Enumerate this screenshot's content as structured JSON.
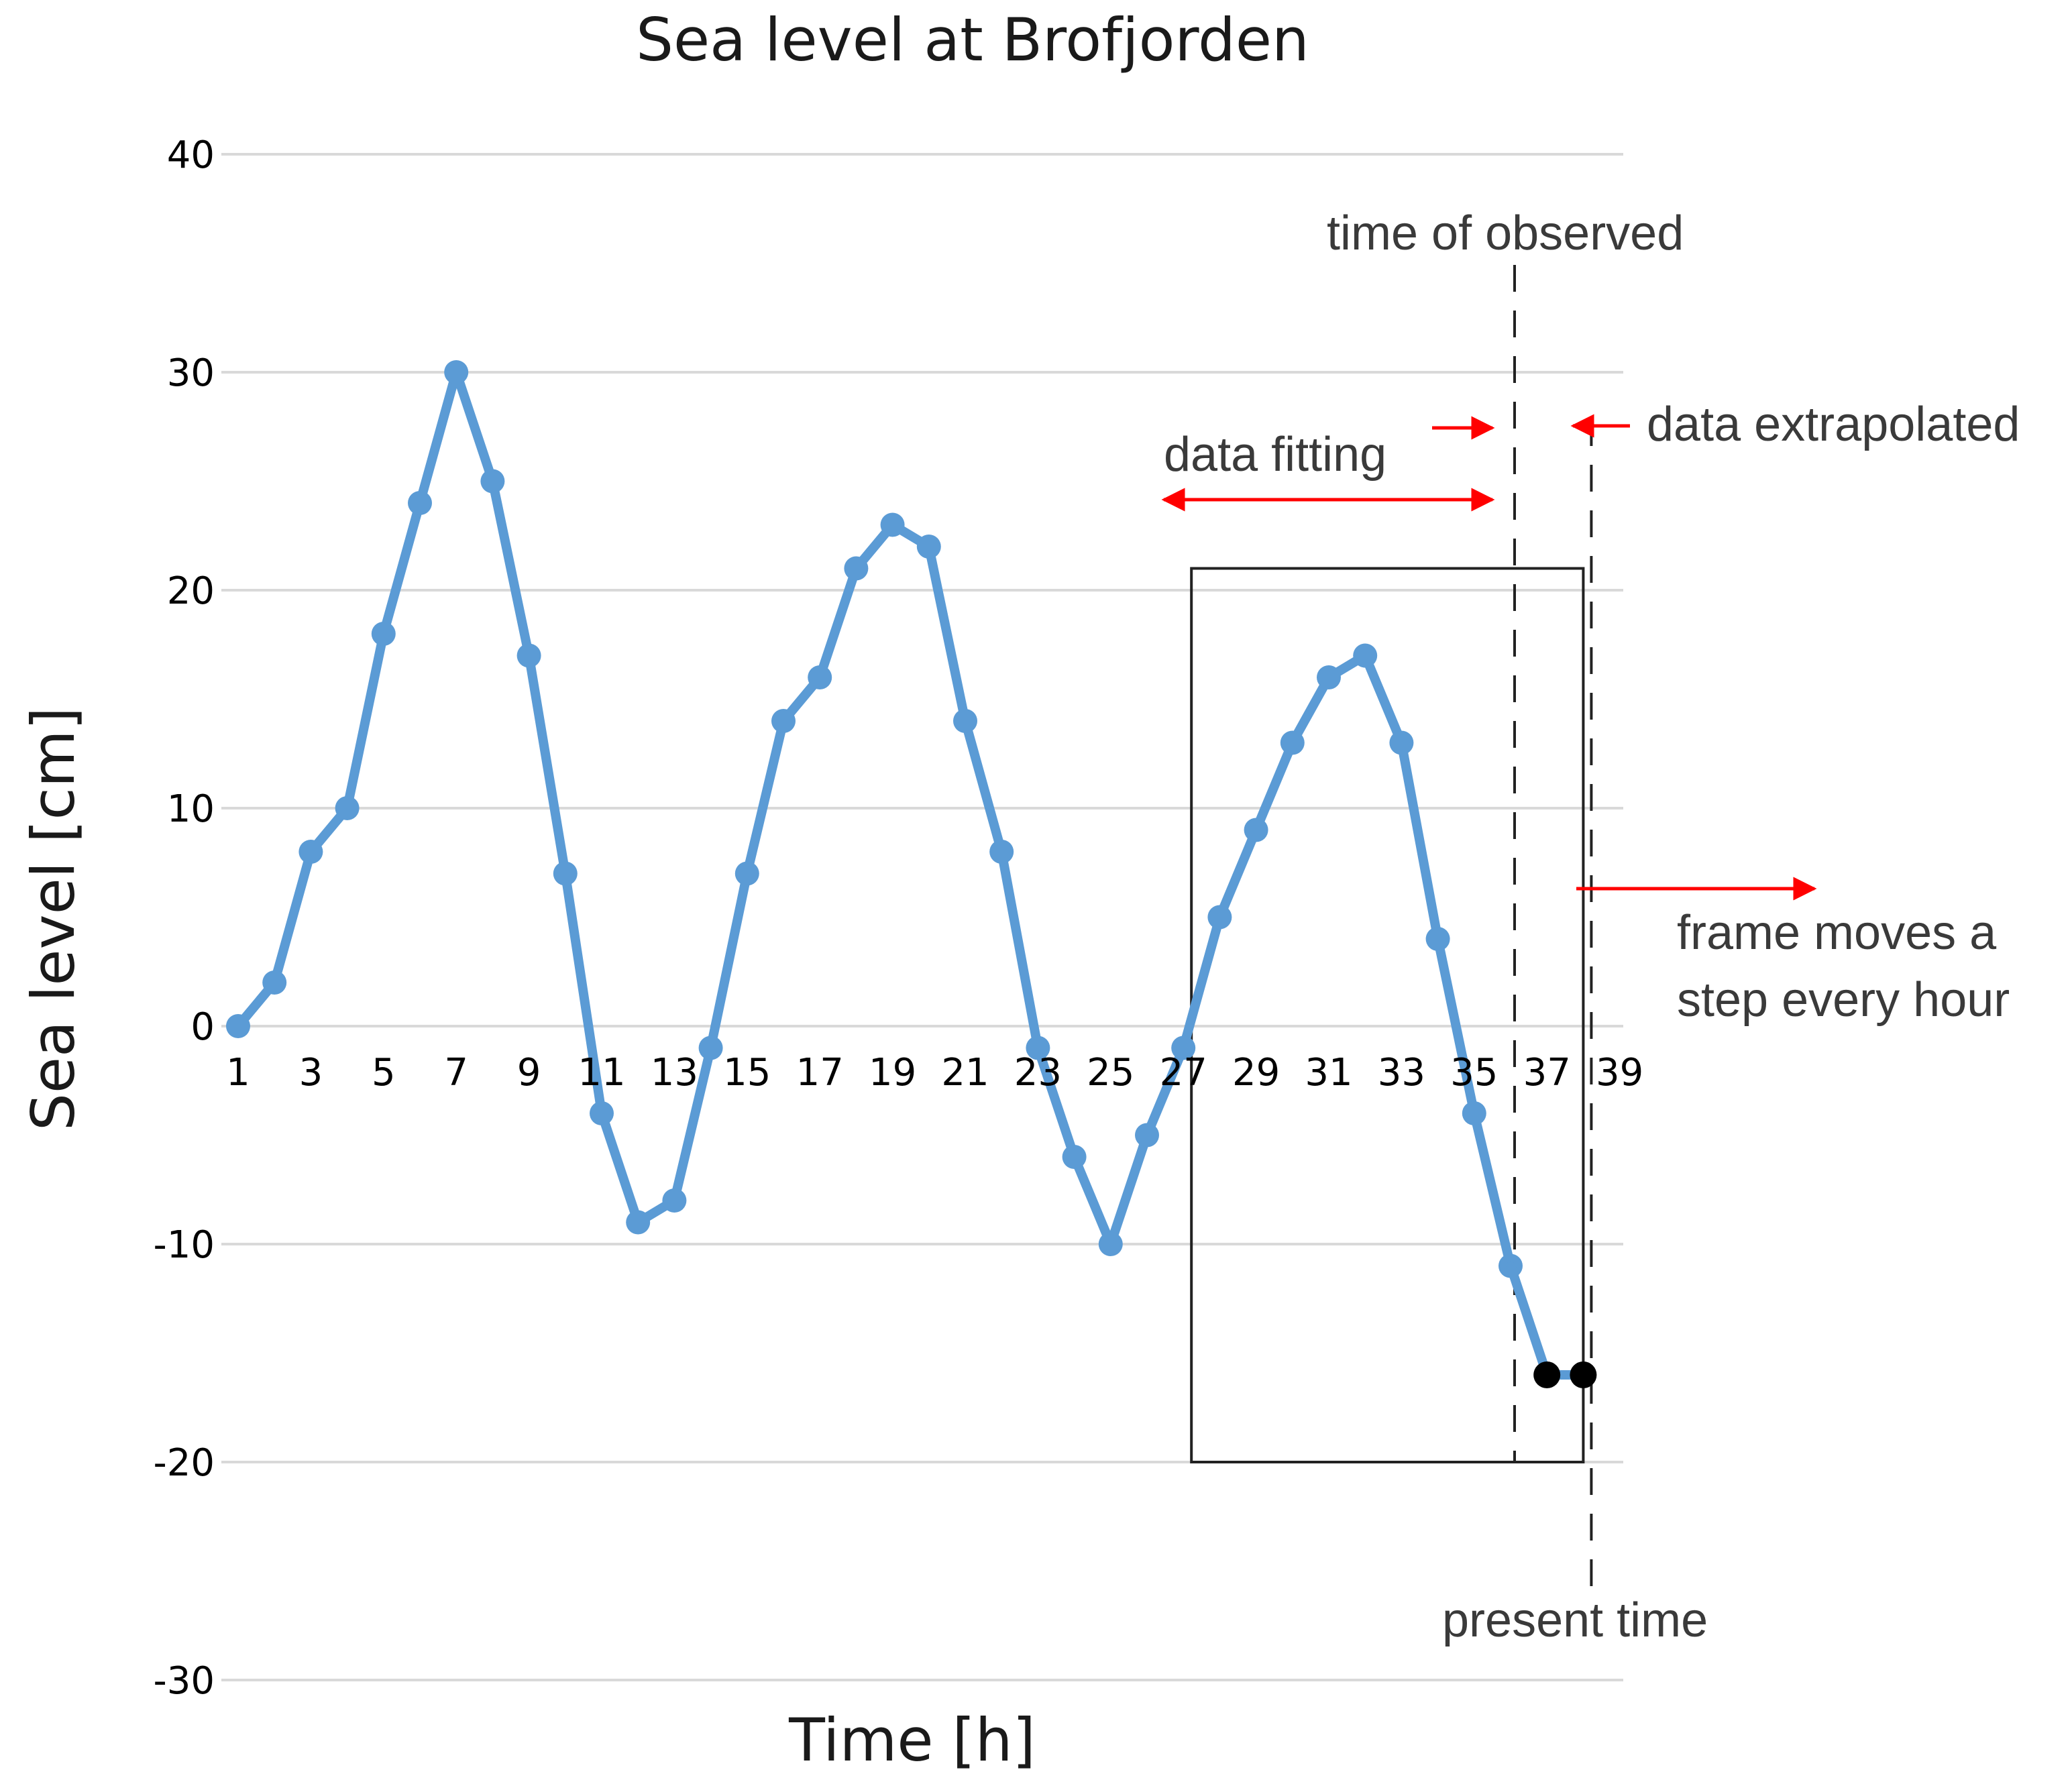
{
  "chart_data": {
    "type": "line",
    "title": "Sea level at Brofjorden",
    "xlabel": "Time [h]",
    "ylabel": "Sea level [cm]",
    "xlim": [
      1,
      39
    ],
    "ylim": [
      -30,
      40
    ],
    "grid": true,
    "y_ticks": [
      40,
      30,
      20,
      10,
      0,
      -10,
      -20,
      -30
    ],
    "x_ticks": [
      1,
      3,
      5,
      7,
      9,
      11,
      13,
      15,
      17,
      19,
      21,
      23,
      25,
      27,
      29,
      31,
      33,
      35,
      37,
      39
    ],
    "series": [
      {
        "x": [
          1,
          2,
          3,
          4,
          5,
          6,
          7,
          8,
          9,
          10,
          11,
          12,
          13,
          14,
          15,
          16,
          17,
          18,
          19,
          20,
          21,
          22,
          23,
          24,
          25,
          26,
          27,
          28,
          29,
          30,
          31,
          32,
          33,
          34,
          35,
          36
        ],
        "values": [
          0,
          2,
          8,
          10,
          18,
          24,
          30,
          25,
          17,
          7,
          -4,
          -9,
          -8,
          -1,
          7,
          14,
          16,
          21,
          23,
          22,
          14,
          8,
          -1,
          -6,
          -10,
          -5,
          -1,
          5,
          9,
          13,
          16,
          17,
          13,
          4,
          -4,
          -11
        ],
        "color": "#5b9bd5"
      }
    ],
    "extrapolated_points": {
      "x": [
        37,
        38
      ],
      "values": [
        -16,
        -16
      ],
      "color": "#000000"
    },
    "frame": {
      "x_start": 27,
      "x_end": 38,
      "y_min": -20,
      "y_max": 21
    },
    "time_of_observed_x": 36,
    "present_time_x": 38,
    "annotations": {
      "time_of_observed": "time of observed",
      "data_fitting": "data fitting",
      "data_extrapolated": "data extrapolated",
      "frame_moves_line1": "frame moves a",
      "frame_moves_line2": "step every hour",
      "present_time": "present time"
    },
    "annotation_color": "#ff0000"
  }
}
